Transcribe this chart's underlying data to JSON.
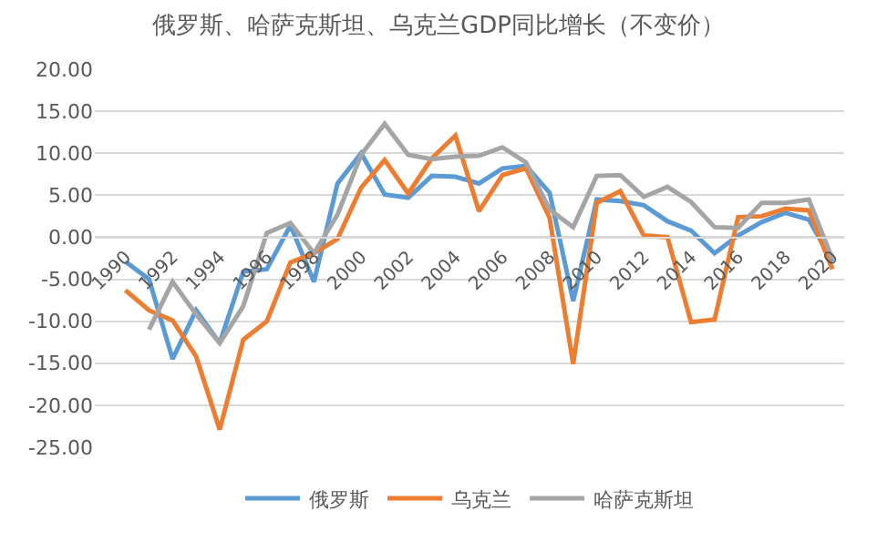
{
  "chart_data": {
    "type": "line",
    "title": "俄罗斯、哈萨克斯坦、乌克兰GDP同比增长（不变价）",
    "categories": [
      "1990",
      null,
      "1992",
      null,
      "1994",
      null,
      "1996",
      null,
      "1998",
      null,
      "2000",
      null,
      "2002",
      null,
      "2004",
      null,
      "2006",
      null,
      "2008",
      null,
      "2010",
      null,
      "2012",
      null,
      "2014",
      null,
      "2016",
      null,
      "2018",
      null,
      "2020"
    ],
    "series": [
      {
        "name": "俄罗斯",
        "color": "#5b9bd5",
        "values": [
          -2.9,
          -5.0,
          -14.5,
          -8.7,
          -12.6,
          -4.1,
          -3.8,
          1.4,
          -5.3,
          6.4,
          10.0,
          5.1,
          4.7,
          7.3,
          7.2,
          6.4,
          8.2,
          8.5,
          5.3,
          -7.6,
          4.5,
          4.3,
          3.8,
          1.9,
          0.8,
          -1.9,
          0.2,
          1.8,
          2.9,
          2.1,
          -2.9
        ]
      },
      {
        "name": "乌克兰",
        "color": "#ed7d31",
        "values": [
          -6.3,
          -8.7,
          -9.9,
          -14.2,
          -22.9,
          -12.2,
          -10.0,
          -3.0,
          -1.9,
          -0.2,
          5.9,
          9.2,
          5.2,
          9.4,
          12.1,
          3.1,
          7.4,
          8.2,
          2.3,
          -15.1,
          4.1,
          5.5,
          0.2,
          0.0,
          -10.1,
          -9.8,
          2.4,
          2.5,
          3.4,
          3.2,
          -3.8
        ]
      },
      {
        "name": "哈萨克斯坦",
        "color": "#a5a5a5",
        "values": [
          null,
          -11.0,
          -5.3,
          -9.2,
          -12.6,
          -8.2,
          0.5,
          1.7,
          -1.9,
          2.7,
          9.8,
          13.5,
          9.8,
          9.3,
          9.6,
          9.7,
          10.7,
          8.9,
          3.3,
          1.2,
          7.3,
          7.4,
          4.8,
          6.0,
          4.2,
          1.2,
          1.1,
          4.1,
          4.1,
          4.5,
          -2.6
        ]
      }
    ],
    "ylim": [
      -25,
      20
    ],
    "yticks": [
      {
        "value": -25,
        "label": "-25.00"
      },
      {
        "value": -20,
        "label": "-20.00"
      },
      {
        "value": -15,
        "label": "-15.00"
      },
      {
        "value": -10,
        "label": "-10.00"
      },
      {
        "value": -5,
        "label": "-5.00"
      },
      {
        "value": 0,
        "label": "0.00"
      },
      {
        "value": 5,
        "label": "5.00"
      },
      {
        "value": 10,
        "label": "10.00"
      },
      {
        "value": 15,
        "label": "15.00"
      },
      {
        "value": 20,
        "label": "20.00"
      }
    ],
    "grid": "y",
    "legend": "bottom",
    "marker": "none",
    "line_style": "solid"
  }
}
